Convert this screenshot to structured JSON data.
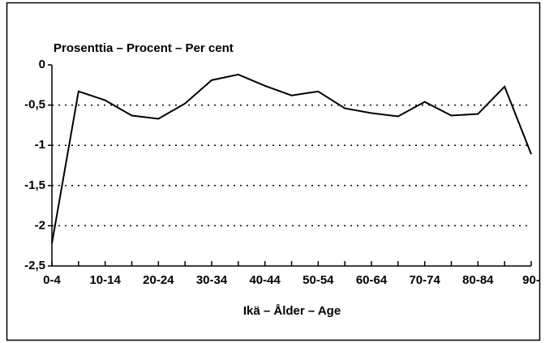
{
  "chart_data": {
    "type": "line",
    "y_label": "Prosenttia – Procent – Per cent",
    "x_label": "Ikä – Ålder – Age",
    "categories": [
      "0-4",
      null,
      "10-14",
      null,
      "20-24",
      null,
      "30-34",
      null,
      "40-44",
      null,
      "50-54",
      null,
      "60-64",
      null,
      "70-74",
      null,
      "80-84",
      null,
      "90-"
    ],
    "values": [
      -2.22,
      -0.33,
      -0.44,
      -0.63,
      -0.67,
      -0.48,
      -0.19,
      -0.12,
      -0.26,
      -0.38,
      -0.33,
      -0.54,
      -0.6,
      -0.64,
      -0.46,
      -0.63,
      -0.61,
      -0.27,
      -1.11
    ],
    "color": "#000000",
    "ylim": [
      -2.5,
      0
    ],
    "yticks": [
      0,
      {
        "value": -0.5,
        "label": "-0,5"
      },
      -1,
      {
        "value": -1.5,
        "label": "-1,5"
      },
      -2,
      {
        "value": -2.5,
        "label": "-2,5"
      }
    ],
    "grid": true
  }
}
